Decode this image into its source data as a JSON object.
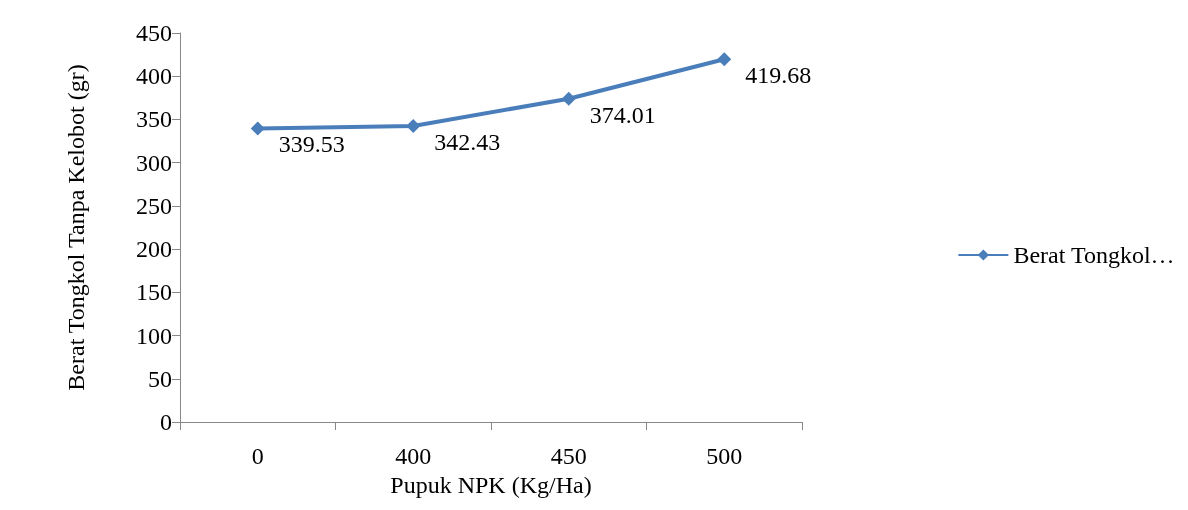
{
  "chart_data": {
    "type": "line",
    "xlabel": "Pupuk NPK (Kg/Ha)",
    "ylabel": "Berat Tongkol Tanpa Kelobot (gr)",
    "categories": [
      "0",
      "400",
      "450",
      "500"
    ],
    "series": [
      {
        "name": "Berat Tongkol…",
        "color": "#4a7ebb",
        "values": [
          339.53,
          342.43,
          374.01,
          419.68
        ]
      }
    ],
    "ylim": [
      0,
      450
    ],
    "yticks": [
      0,
      50,
      100,
      150,
      200,
      250,
      300,
      350,
      400,
      450
    ],
    "data_labels": true,
    "marker": "diamond",
    "legend": "right",
    "grid": false
  }
}
